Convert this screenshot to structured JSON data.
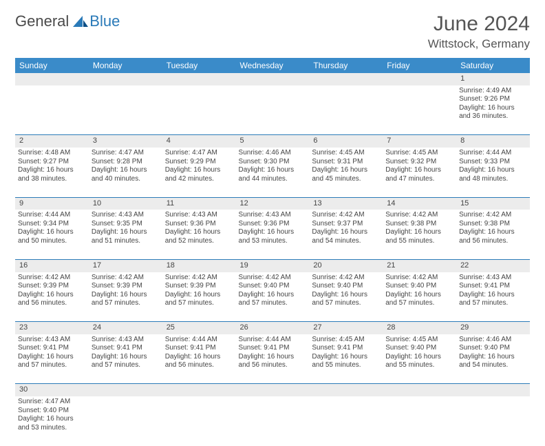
{
  "logo": {
    "dark": "General",
    "blue": "Blue"
  },
  "title": "June 2024",
  "location": "Wittstock, Germany",
  "colors": {
    "header_bg": "#3a8bc9",
    "border": "#2a7ab8",
    "daynum_bg": "#ececec",
    "text": "#444444",
    "title_text": "#555555"
  },
  "day_headers": [
    "Sunday",
    "Monday",
    "Tuesday",
    "Wednesday",
    "Thursday",
    "Friday",
    "Saturday"
  ],
  "weeks": [
    {
      "nums": [
        "",
        "",
        "",
        "",
        "",
        "",
        "1"
      ],
      "cells": [
        null,
        null,
        null,
        null,
        null,
        null,
        {
          "sunrise": "4:49 AM",
          "sunset": "9:26 PM",
          "daylight": "16 hours and 36 minutes."
        }
      ]
    },
    {
      "nums": [
        "2",
        "3",
        "4",
        "5",
        "6",
        "7",
        "8"
      ],
      "cells": [
        {
          "sunrise": "4:48 AM",
          "sunset": "9:27 PM",
          "daylight": "16 hours and 38 minutes."
        },
        {
          "sunrise": "4:47 AM",
          "sunset": "9:28 PM",
          "daylight": "16 hours and 40 minutes."
        },
        {
          "sunrise": "4:47 AM",
          "sunset": "9:29 PM",
          "daylight": "16 hours and 42 minutes."
        },
        {
          "sunrise": "4:46 AM",
          "sunset": "9:30 PM",
          "daylight": "16 hours and 44 minutes."
        },
        {
          "sunrise": "4:45 AM",
          "sunset": "9:31 PM",
          "daylight": "16 hours and 45 minutes."
        },
        {
          "sunrise": "4:45 AM",
          "sunset": "9:32 PM",
          "daylight": "16 hours and 47 minutes."
        },
        {
          "sunrise": "4:44 AM",
          "sunset": "9:33 PM",
          "daylight": "16 hours and 48 minutes."
        }
      ]
    },
    {
      "nums": [
        "9",
        "10",
        "11",
        "12",
        "13",
        "14",
        "15"
      ],
      "cells": [
        {
          "sunrise": "4:44 AM",
          "sunset": "9:34 PM",
          "daylight": "16 hours and 50 minutes."
        },
        {
          "sunrise": "4:43 AM",
          "sunset": "9:35 PM",
          "daylight": "16 hours and 51 minutes."
        },
        {
          "sunrise": "4:43 AM",
          "sunset": "9:36 PM",
          "daylight": "16 hours and 52 minutes."
        },
        {
          "sunrise": "4:43 AM",
          "sunset": "9:36 PM",
          "daylight": "16 hours and 53 minutes."
        },
        {
          "sunrise": "4:42 AM",
          "sunset": "9:37 PM",
          "daylight": "16 hours and 54 minutes."
        },
        {
          "sunrise": "4:42 AM",
          "sunset": "9:38 PM",
          "daylight": "16 hours and 55 minutes."
        },
        {
          "sunrise": "4:42 AM",
          "sunset": "9:38 PM",
          "daylight": "16 hours and 56 minutes."
        }
      ]
    },
    {
      "nums": [
        "16",
        "17",
        "18",
        "19",
        "20",
        "21",
        "22"
      ],
      "cells": [
        {
          "sunrise": "4:42 AM",
          "sunset": "9:39 PM",
          "daylight": "16 hours and 56 minutes."
        },
        {
          "sunrise": "4:42 AM",
          "sunset": "9:39 PM",
          "daylight": "16 hours and 57 minutes."
        },
        {
          "sunrise": "4:42 AM",
          "sunset": "9:39 PM",
          "daylight": "16 hours and 57 minutes."
        },
        {
          "sunrise": "4:42 AM",
          "sunset": "9:40 PM",
          "daylight": "16 hours and 57 minutes."
        },
        {
          "sunrise": "4:42 AM",
          "sunset": "9:40 PM",
          "daylight": "16 hours and 57 minutes."
        },
        {
          "sunrise": "4:42 AM",
          "sunset": "9:40 PM",
          "daylight": "16 hours and 57 minutes."
        },
        {
          "sunrise": "4:43 AM",
          "sunset": "9:41 PM",
          "daylight": "16 hours and 57 minutes."
        }
      ]
    },
    {
      "nums": [
        "23",
        "24",
        "25",
        "26",
        "27",
        "28",
        "29"
      ],
      "cells": [
        {
          "sunrise": "4:43 AM",
          "sunset": "9:41 PM",
          "daylight": "16 hours and 57 minutes."
        },
        {
          "sunrise": "4:43 AM",
          "sunset": "9:41 PM",
          "daylight": "16 hours and 57 minutes."
        },
        {
          "sunrise": "4:44 AM",
          "sunset": "9:41 PM",
          "daylight": "16 hours and 56 minutes."
        },
        {
          "sunrise": "4:44 AM",
          "sunset": "9:41 PM",
          "daylight": "16 hours and 56 minutes."
        },
        {
          "sunrise": "4:45 AM",
          "sunset": "9:41 PM",
          "daylight": "16 hours and 55 minutes."
        },
        {
          "sunrise": "4:45 AM",
          "sunset": "9:40 PM",
          "daylight": "16 hours and 55 minutes."
        },
        {
          "sunrise": "4:46 AM",
          "sunset": "9:40 PM",
          "daylight": "16 hours and 54 minutes."
        }
      ]
    },
    {
      "nums": [
        "30",
        "",
        "",
        "",
        "",
        "",
        ""
      ],
      "cells": [
        {
          "sunrise": "4:47 AM",
          "sunset": "9:40 PM",
          "daylight": "16 hours and 53 minutes."
        },
        null,
        null,
        null,
        null,
        null,
        null
      ]
    }
  ],
  "labels": {
    "sunrise": "Sunrise: ",
    "sunset": "Sunset: ",
    "daylight": "Daylight: "
  }
}
